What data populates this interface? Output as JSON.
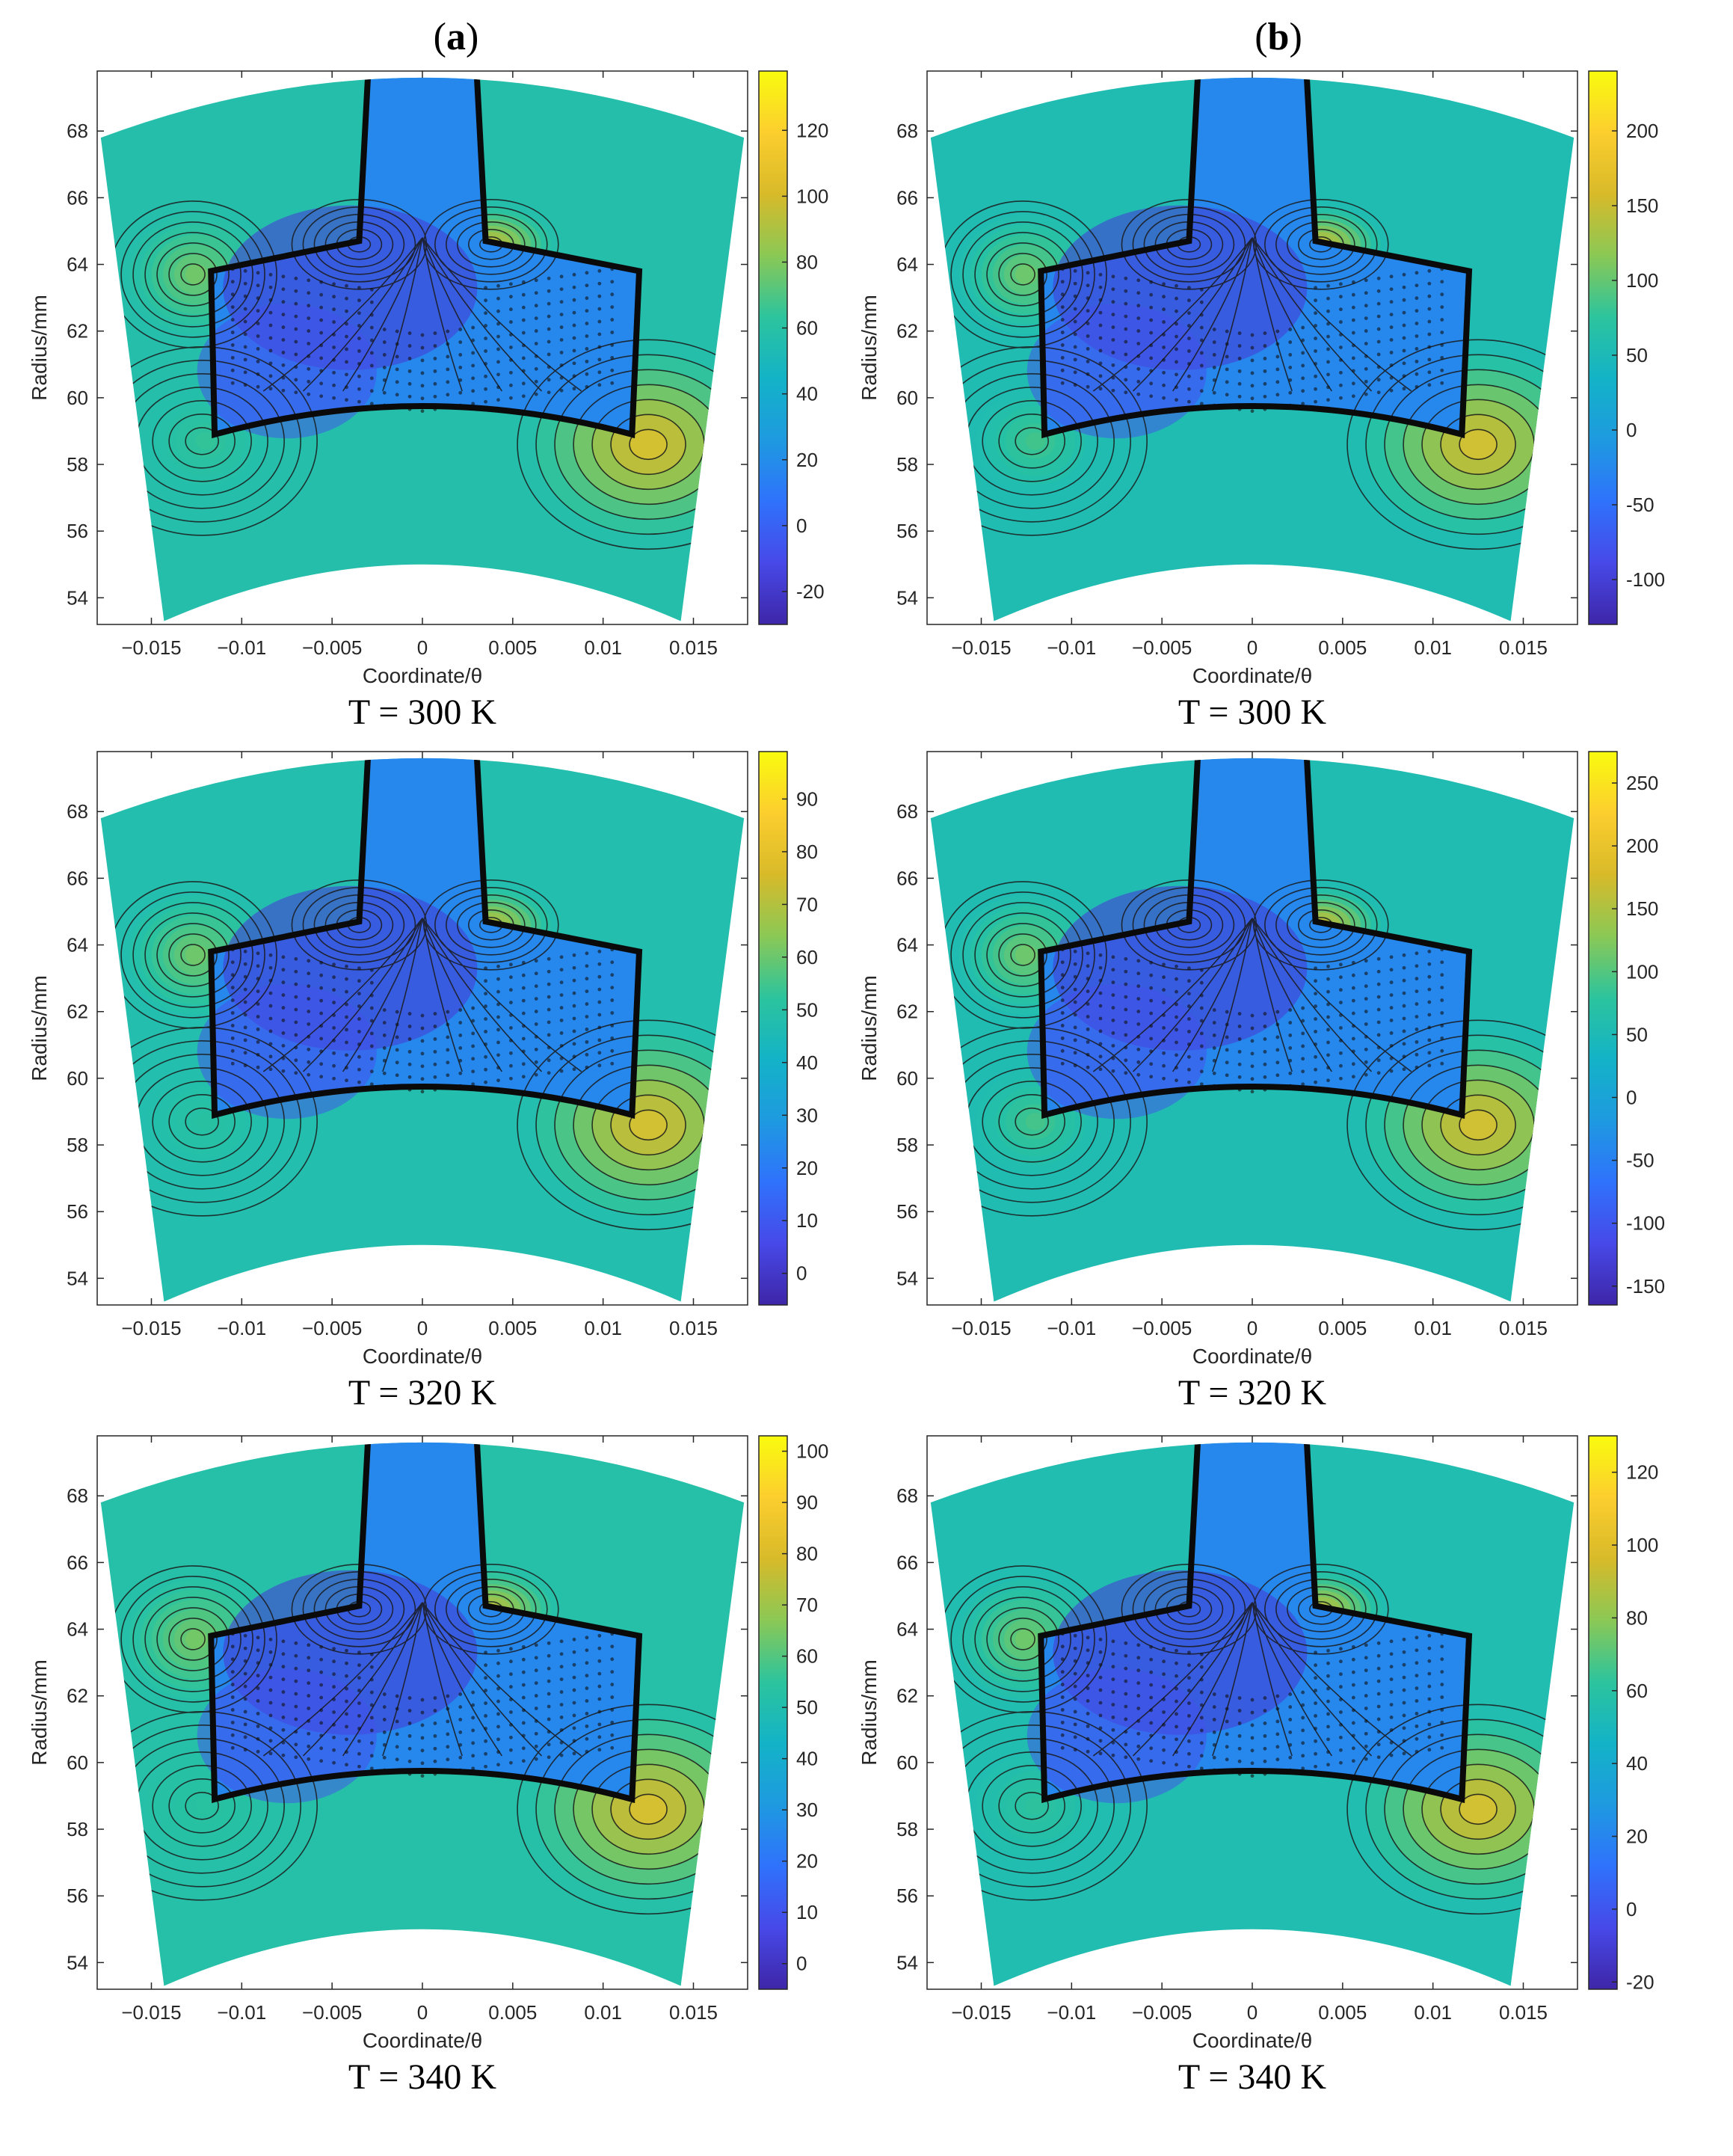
{
  "columns": [
    "a",
    "b"
  ],
  "axes": {
    "xlabel": "Coordinate/θ",
    "ylabel": "Radius/mm",
    "xticks": [
      -0.015,
      -0.01,
      -0.005,
      0,
      0.005,
      0.01,
      0.015
    ],
    "xtick_labels": [
      "−0.015",
      "−0.01",
      "−0.005",
      "0",
      "0.005",
      "0.01",
      "0.015"
    ],
    "yticks": [
      54,
      56,
      58,
      60,
      62,
      64,
      66,
      68
    ],
    "xlim": [
      -0.018,
      0.018
    ],
    "ylim": [
      53.2,
      69.8
    ]
  },
  "colormap": [
    "#3e26a8",
    "#4749e8",
    "#2f72fc",
    "#1e9ae0",
    "#13b3c7",
    "#2cc49d",
    "#8bc855",
    "#d8ba29",
    "#fcce2e",
    "#f9fb0e"
  ],
  "chart_data": [
    {
      "type": "heatmap",
      "column": "a",
      "caption": "T = 300 K",
      "colorbar": {
        "min": -30,
        "max": 138,
        "ticks": [
          -20,
          0,
          20,
          40,
          60,
          80,
          100,
          120
        ]
      },
      "background": 57
    },
    {
      "type": "heatmap",
      "column": "b",
      "caption": "T = 300 K",
      "colorbar": {
        "min": -130,
        "max": 240,
        "ticks": [
          -100,
          -50,
          0,
          50,
          100,
          150,
          200
        ]
      },
      "background": 55
    },
    {
      "type": "heatmap",
      "column": "a",
      "caption": "T = 320 K",
      "colorbar": {
        "min": -6,
        "max": 99,
        "ticks": [
          0,
          10,
          20,
          30,
          40,
          50,
          60,
          70,
          80,
          90
        ]
      },
      "background": 48
    },
    {
      "type": "heatmap",
      "column": "b",
      "caption": "T = 320 K",
      "colorbar": {
        "min": -165,
        "max": 275,
        "ticks": [
          -150,
          -100,
          -50,
          0,
          50,
          100,
          150,
          200,
          250
        ]
      },
      "background": 55
    },
    {
      "type": "heatmap",
      "column": "a",
      "caption": "T = 340 K",
      "colorbar": {
        "min": -5,
        "max": 103,
        "ticks": [
          0,
          10,
          20,
          30,
          40,
          50,
          60,
          70,
          80,
          90,
          100
        ]
      },
      "background": 52
    },
    {
      "type": "heatmap",
      "column": "b",
      "caption": "T = 340 K",
      "colorbar": {
        "min": -22,
        "max": 130,
        "ticks": [
          -20,
          0,
          20,
          40,
          60,
          80,
          100,
          120
        ]
      },
      "background": 55
    }
  ]
}
